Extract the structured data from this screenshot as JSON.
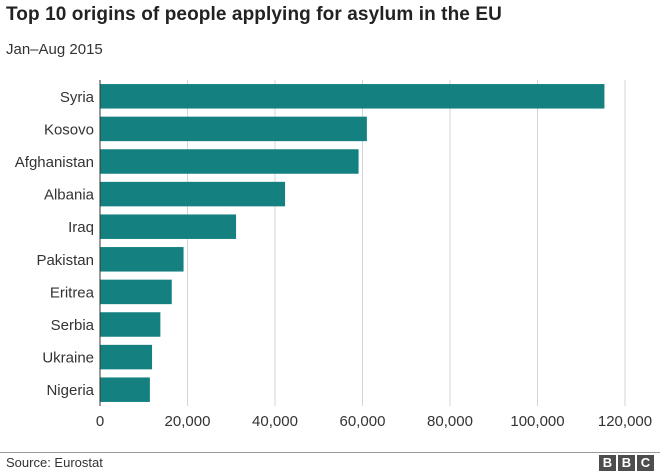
{
  "chart_data": {
    "type": "bar",
    "orientation": "horizontal",
    "title": "Top 10 origins of people applying for asylum in the EU",
    "subtitle": "Jan–Aug 2015",
    "categories": [
      "Syria",
      "Kosovo",
      "Afghanistan",
      "Albania",
      "Iraq",
      "Pakistan",
      "Eritrea",
      "Serbia",
      "Ukraine",
      "Nigeria"
    ],
    "values": [
      115300,
      61000,
      59100,
      42300,
      31100,
      19100,
      16400,
      13800,
      11900,
      11400
    ],
    "xlim": [
      0,
      120000
    ],
    "xticks": [
      0,
      20000,
      40000,
      60000,
      80000,
      100000,
      120000
    ],
    "xtick_labels": [
      "0",
      "20,000",
      "40,000",
      "60,000",
      "80,000",
      "100,000",
      "120,000"
    ],
    "grid": true,
    "bar_color": "#148080",
    "grid_color": "#d5d5d5"
  },
  "footer": {
    "source": "Source: Eurostat"
  },
  "logo": {
    "letters": [
      "B",
      "B",
      "C"
    ]
  }
}
